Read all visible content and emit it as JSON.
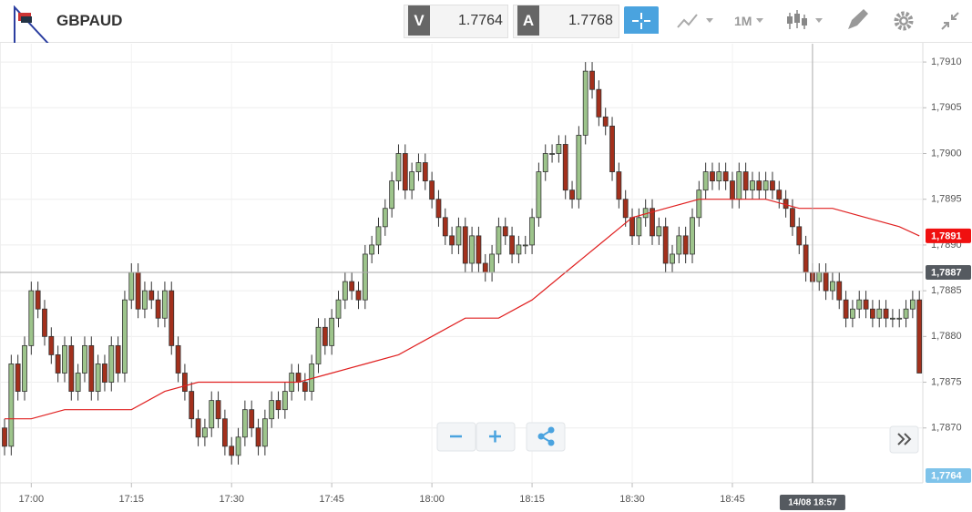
{
  "toolbar": {
    "symbol": "GBPAUD",
    "bid_label": "V",
    "bid": "1.7764",
    "ask_label": "A",
    "ask": "1.7768",
    "timeframe": "1M"
  },
  "chart_data": {
    "type": "candlestick",
    "up_color": "#9dc48b",
    "down_color": "#a3301c",
    "grid": true,
    "x": [
      "16:56",
      "16:57",
      "16:58",
      "16:59",
      "17:00",
      "17:01",
      "17:02",
      "17:03",
      "17:04",
      "17:05",
      "17:06",
      "17:07",
      "17:08",
      "17:09",
      "17:10",
      "17:11",
      "17:12",
      "17:13",
      "17:14",
      "17:15",
      "17:16",
      "17:17",
      "17:18",
      "17:19",
      "17:20",
      "17:21",
      "17:22",
      "17:23",
      "17:24",
      "17:25",
      "17:26",
      "17:27",
      "17:28",
      "17:29",
      "17:30",
      "17:31",
      "17:32",
      "17:33",
      "17:34",
      "17:35",
      "17:36",
      "17:37",
      "17:38",
      "17:39",
      "17:40",
      "17:41",
      "17:42",
      "17:43",
      "17:44",
      "17:45",
      "17:46",
      "17:47",
      "17:48",
      "17:49",
      "17:50",
      "17:51",
      "17:52",
      "17:53",
      "17:54",
      "17:55",
      "17:56",
      "17:57",
      "17:58",
      "17:59",
      "18:00",
      "18:01",
      "18:02",
      "18:03",
      "18:04",
      "18:05",
      "18:06",
      "18:07",
      "18:08",
      "18:09",
      "18:10",
      "18:11",
      "18:12",
      "18:13",
      "18:14",
      "18:15",
      "18:16",
      "18:17",
      "18:18",
      "18:19",
      "18:20",
      "18:21",
      "18:22",
      "18:23",
      "18:24",
      "18:25",
      "18:26",
      "18:27",
      "18:28",
      "18:29",
      "18:30",
      "18:31",
      "18:32",
      "18:33",
      "18:34",
      "18:35",
      "18:36",
      "18:37",
      "18:38",
      "18:39",
      "18:40",
      "18:41",
      "18:42",
      "18:43",
      "18:44",
      "18:45",
      "18:46",
      "18:47",
      "18:48",
      "18:49",
      "18:50",
      "18:51",
      "18:52",
      "18:53",
      "18:54",
      "18:55",
      "18:56",
      "18:57",
      "18:58",
      "18:59",
      "19:00",
      "19:01",
      "19:02",
      "19:03",
      "19:04",
      "19:05",
      "19:06",
      "19:07",
      "19:08",
      "19:09",
      "19:10",
      "19:11",
      "19:12",
      "19:13"
    ],
    "candles": [
      [
        1.787,
        1.7871,
        1.7867,
        1.7868
      ],
      [
        1.7868,
        1.7878,
        1.7867,
        1.7877
      ],
      [
        1.7877,
        1.7878,
        1.7873,
        1.7874
      ],
      [
        1.7874,
        1.788,
        1.7873,
        1.7879
      ],
      [
        1.7879,
        1.7886,
        1.7878,
        1.7885
      ],
      [
        1.7885,
        1.7886,
        1.7882,
        1.7883
      ],
      [
        1.7883,
        1.7884,
        1.7879,
        1.788
      ],
      [
        1.788,
        1.7881,
        1.7877,
        1.7878
      ],
      [
        1.7878,
        1.7879,
        1.7875,
        1.7876
      ],
      [
        1.7876,
        1.788,
        1.7875,
        1.7879
      ],
      [
        1.7879,
        1.788,
        1.7873,
        1.7874
      ],
      [
        1.7874,
        1.7877,
        1.7873,
        1.7876
      ],
      [
        1.7876,
        1.788,
        1.7875,
        1.7879
      ],
      [
        1.7879,
        1.788,
        1.7873,
        1.7874
      ],
      [
        1.7874,
        1.7878,
        1.7873,
        1.7877
      ],
      [
        1.7877,
        1.7878,
        1.7874,
        1.7875
      ],
      [
        1.7875,
        1.788,
        1.7874,
        1.7879
      ],
      [
        1.7879,
        1.788,
        1.7875,
        1.7876
      ],
      [
        1.7876,
        1.7885,
        1.7875,
        1.7884
      ],
      [
        1.7884,
        1.7888,
        1.7883,
        1.7887
      ],
      [
        1.7887,
        1.7888,
        1.7882,
        1.7883
      ],
      [
        1.7883,
        1.7886,
        1.7882,
        1.7885
      ],
      [
        1.7885,
        1.7886,
        1.7883,
        1.7884
      ],
      [
        1.7884,
        1.7885,
        1.7881,
        1.7882
      ],
      [
        1.7882,
        1.7886,
        1.7881,
        1.7885
      ],
      [
        1.7885,
        1.7886,
        1.7878,
        1.7879
      ],
      [
        1.7879,
        1.788,
        1.7875,
        1.7876
      ],
      [
        1.7876,
        1.7877,
        1.7873,
        1.7874
      ],
      [
        1.7874,
        1.7875,
        1.787,
        1.7871
      ],
      [
        1.7871,
        1.7872,
        1.7868,
        1.7869
      ],
      [
        1.7869,
        1.7871,
        1.7868,
        1.787
      ],
      [
        1.787,
        1.7874,
        1.7869,
        1.7873
      ],
      [
        1.7873,
        1.7874,
        1.787,
        1.7871
      ],
      [
        1.7871,
        1.7872,
        1.7867,
        1.7868
      ],
      [
        1.7868,
        1.7869,
        1.7866,
        1.7867
      ],
      [
        1.7867,
        1.787,
        1.7866,
        1.7869
      ],
      [
        1.7869,
        1.7873,
        1.7868,
        1.7872
      ],
      [
        1.7872,
        1.7873,
        1.7869,
        1.787
      ],
      [
        1.787,
        1.7871,
        1.7867,
        1.7868
      ],
      [
        1.7868,
        1.7872,
        1.7867,
        1.7871
      ],
      [
        1.7871,
        1.7874,
        1.787,
        1.7873
      ],
      [
        1.7873,
        1.7874,
        1.7871,
        1.7872
      ],
      [
        1.7872,
        1.7875,
        1.7871,
        1.7874
      ],
      [
        1.7874,
        1.7877,
        1.7873,
        1.7876
      ],
      [
        1.7876,
        1.7877,
        1.7874,
        1.7875
      ],
      [
        1.7875,
        1.7876,
        1.7873,
        1.7874
      ],
      [
        1.7874,
        1.7878,
        1.7873,
        1.7877
      ],
      [
        1.7877,
        1.7882,
        1.7876,
        1.7881
      ],
      [
        1.7881,
        1.7882,
        1.7878,
        1.7879
      ],
      [
        1.7879,
        1.7883,
        1.7878,
        1.7882
      ],
      [
        1.7882,
        1.7885,
        1.7881,
        1.7884
      ],
      [
        1.7884,
        1.7887,
        1.7883,
        1.7886
      ],
      [
        1.7886,
        1.7887,
        1.7884,
        1.7885
      ],
      [
        1.7885,
        1.7886,
        1.7883,
        1.7884
      ],
      [
        1.7884,
        1.789,
        1.7883,
        1.7889
      ],
      [
        1.7889,
        1.7891,
        1.7888,
        1.789
      ],
      [
        1.789,
        1.7893,
        1.7889,
        1.7892
      ],
      [
        1.7892,
        1.7895,
        1.7891,
        1.7894
      ],
      [
        1.7894,
        1.7898,
        1.7893,
        1.7897
      ],
      [
        1.7897,
        1.7901,
        1.7896,
        1.79
      ],
      [
        1.79,
        1.7901,
        1.7895,
        1.7896
      ],
      [
        1.7896,
        1.7899,
        1.7895,
        1.7898
      ],
      [
        1.7898,
        1.79,
        1.7897,
        1.7899
      ],
      [
        1.7899,
        1.79,
        1.7896,
        1.7897
      ],
      [
        1.7897,
        1.7898,
        1.7894,
        1.7895
      ],
      [
        1.7895,
        1.7896,
        1.7892,
        1.7893
      ],
      [
        1.7893,
        1.7894,
        1.789,
        1.7891
      ],
      [
        1.7891,
        1.7892,
        1.7889,
        1.789
      ],
      [
        1.789,
        1.7893,
        1.7889,
        1.7892
      ],
      [
        1.7892,
        1.7893,
        1.7887,
        1.7888
      ],
      [
        1.7888,
        1.7892,
        1.7887,
        1.7891
      ],
      [
        1.7891,
        1.7892,
        1.7887,
        1.7888
      ],
      [
        1.7888,
        1.7889,
        1.7886,
        1.7887
      ],
      [
        1.7887,
        1.789,
        1.7886,
        1.7889
      ],
      [
        1.7889,
        1.7893,
        1.7888,
        1.7892
      ],
      [
        1.7892,
        1.7893,
        1.789,
        1.7891
      ],
      [
        1.7891,
        1.7892,
        1.7888,
        1.7889
      ],
      [
        1.7889,
        1.7891,
        1.7888,
        1.789
      ],
      [
        1.789,
        1.7891,
        1.7889,
        1.789
      ],
      [
        1.789,
        1.7894,
        1.7889,
        1.7893
      ],
      [
        1.7893,
        1.7899,
        1.7892,
        1.7898
      ],
      [
        1.7898,
        1.7901,
        1.7897,
        1.79
      ],
      [
        1.79,
        1.7901,
        1.7899,
        1.79
      ],
      [
        1.79,
        1.7902,
        1.7899,
        1.7901
      ],
      [
        1.7901,
        1.7902,
        1.7895,
        1.7896
      ],
      [
        1.7896,
        1.7897,
        1.7894,
        1.7895
      ],
      [
        1.7895,
        1.7903,
        1.7894,
        1.7902
      ],
      [
        1.7902,
        1.791,
        1.7901,
        1.7909
      ],
      [
        1.7909,
        1.791,
        1.7906,
        1.7907
      ],
      [
        1.7907,
        1.7908,
        1.7903,
        1.7904
      ],
      [
        1.7904,
        1.7905,
        1.7902,
        1.7903
      ],
      [
        1.7903,
        1.7904,
        1.7897,
        1.7898
      ],
      [
        1.7898,
        1.7899,
        1.7894,
        1.7895
      ],
      [
        1.7895,
        1.7896,
        1.7892,
        1.7893
      ],
      [
        1.7893,
        1.7894,
        1.789,
        1.7891
      ],
      [
        1.7891,
        1.7894,
        1.789,
        1.7893
      ],
      [
        1.7893,
        1.7895,
        1.7892,
        1.7894
      ],
      [
        1.7894,
        1.7895,
        1.789,
        1.7891
      ],
      [
        1.7891,
        1.7893,
        1.789,
        1.7892
      ],
      [
        1.7892,
        1.7893,
        1.7887,
        1.7888
      ],
      [
        1.7888,
        1.789,
        1.7887,
        1.7889
      ],
      [
        1.7889,
        1.7892,
        1.7888,
        1.7891
      ],
      [
        1.7891,
        1.7892,
        1.7888,
        1.7889
      ],
      [
        1.7889,
        1.7894,
        1.7888,
        1.7893
      ],
      [
        1.7893,
        1.7897,
        1.7892,
        1.7896
      ],
      [
        1.7896,
        1.7899,
        1.7895,
        1.7898
      ],
      [
        1.7898,
        1.7899,
        1.7896,
        1.7897
      ],
      [
        1.7897,
        1.7899,
        1.7896,
        1.7898
      ],
      [
        1.7898,
        1.7899,
        1.7896,
        1.7897
      ],
      [
        1.7897,
        1.7898,
        1.7894,
        1.7895
      ],
      [
        1.7895,
        1.7899,
        1.7894,
        1.7898
      ],
      [
        1.7898,
        1.7899,
        1.7895,
        1.7896
      ],
      [
        1.7896,
        1.7898,
        1.7895,
        1.7897
      ],
      [
        1.7897,
        1.7898,
        1.7895,
        1.7896
      ],
      [
        1.7896,
        1.7898,
        1.7895,
        1.7897
      ],
      [
        1.7897,
        1.7898,
        1.7895,
        1.7896
      ],
      [
        1.7896,
        1.7897,
        1.7894,
        1.7895
      ],
      [
        1.7895,
        1.7896,
        1.7893,
        1.7894
      ],
      [
        1.7894,
        1.7895,
        1.7891,
        1.7892
      ],
      [
        1.7892,
        1.7893,
        1.7889,
        1.789
      ],
      [
        1.789,
        1.7891,
        1.7886,
        1.7887
      ],
      [
        1.7887,
        1.7888,
        1.7885,
        1.7886
      ],
      [
        1.7886,
        1.7888,
        1.7885,
        1.7887
      ],
      [
        1.7887,
        1.7888,
        1.7884,
        1.7885
      ],
      [
        1.7885,
        1.7887,
        1.7884,
        1.7886
      ],
      [
        1.7886,
        1.7887,
        1.7883,
        1.7884
      ],
      [
        1.7884,
        1.7885,
        1.7881,
        1.7882
      ],
      [
        1.7882,
        1.7884,
        1.7881,
        1.7883
      ],
      [
        1.7883,
        1.7885,
        1.7882,
        1.7884
      ],
      [
        1.7884,
        1.7885,
        1.7882,
        1.7883
      ],
      [
        1.7883,
        1.7884,
        1.7881,
        1.7882
      ],
      [
        1.7882,
        1.7884,
        1.7881,
        1.7883
      ],
      [
        1.7883,
        1.7884,
        1.7881,
        1.7882
      ],
      [
        1.7882,
        1.7883,
        1.7881,
        1.7882
      ],
      [
        1.7882,
        1.7883,
        1.7881,
        1.7882
      ],
      [
        1.7882,
        1.7884,
        1.7881,
        1.7883
      ],
      [
        1.7883,
        1.7885,
        1.7882,
        1.7884
      ],
      [
        1.7884,
        1.7885,
        1.7876,
        1.7876
      ]
    ],
    "moving_average": {
      "color": "#e02020",
      "x": [
        "16:56",
        "17:00",
        "17:05",
        "17:10",
        "17:15",
        "17:20",
        "17:25",
        "17:30",
        "17:35",
        "17:40",
        "17:45",
        "17:50",
        "17:55",
        "18:00",
        "18:05",
        "18:10",
        "18:15",
        "18:20",
        "18:25",
        "18:30",
        "18:35",
        "18:40",
        "18:45",
        "18:50",
        "18:55",
        "19:00",
        "19:05",
        "19:10",
        "19:13"
      ],
      "values": [
        1.7871,
        1.7871,
        1.7872,
        1.7872,
        1.7872,
        1.7874,
        1.7875,
        1.7875,
        1.7875,
        1.7875,
        1.7876,
        1.7877,
        1.7878,
        1.788,
        1.7882,
        1.7882,
        1.7884,
        1.7887,
        1.789,
        1.7893,
        1.7894,
        1.7895,
        1.7895,
        1.7895,
        1.7894,
        1.7894,
        1.7893,
        1.7892,
        1.7891
      ]
    },
    "ylim": [
      1.7864,
      1.7912
    ],
    "yticks": [
      {
        "value": 1.787,
        "label": "1,7870"
      },
      {
        "value": 1.7875,
        "label": "1,7875"
      },
      {
        "value": 1.788,
        "label": "1,7880"
      },
      {
        "value": 1.7885,
        "label": "1,7885"
      },
      {
        "value": 1.789,
        "label": "1,7890"
      },
      {
        "value": 1.7895,
        "label": "1,7895"
      },
      {
        "value": 1.79,
        "label": "1,7900"
      },
      {
        "value": 1.7905,
        "label": "1,7905"
      },
      {
        "value": 1.791,
        "label": "1,7910"
      }
    ],
    "xticks": [
      "17:00",
      "17:15",
      "17:30",
      "17:45",
      "18:00",
      "18:15",
      "18:30",
      "18:45"
    ],
    "price_tags": [
      {
        "value": 1.7891,
        "label": "1,7891",
        "color": "#f01010"
      },
      {
        "value": 1.7887,
        "label": "1,7887",
        "color": "#555a60"
      },
      {
        "value": 1.7764,
        "label": "1,7764",
        "color": "#7ec3ea"
      }
    ],
    "crosshair": {
      "x": "18:57",
      "label": "14/08 18:57",
      "y": 1.7887
    }
  }
}
